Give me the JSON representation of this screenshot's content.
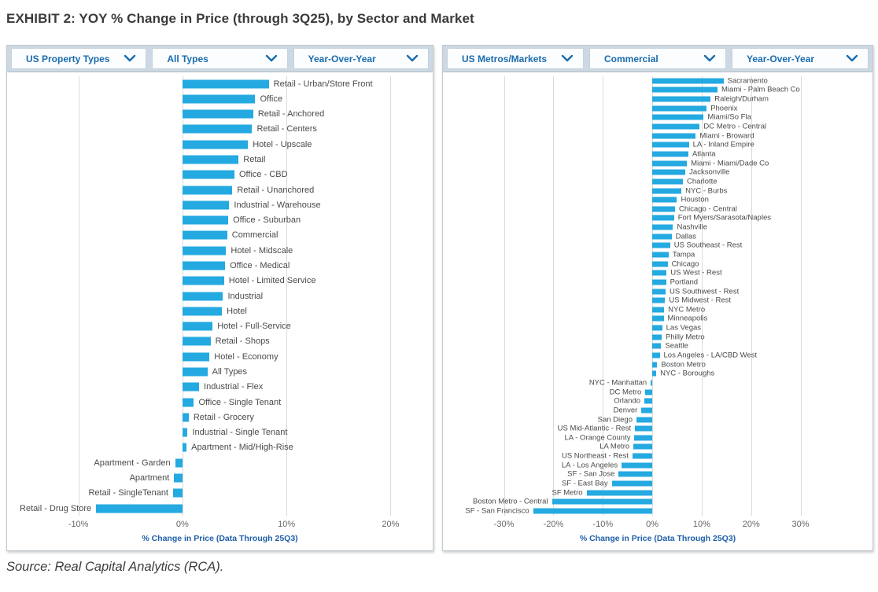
{
  "title": "EXHIBIT 2: YOY % Change in Price (through 3Q25), by Sector and Market",
  "source": "Source: Real Capital Analytics (RCA).",
  "colors": {
    "bar": "#24a9e1",
    "dropdown_text": "#1a6cae",
    "axis_title_text": "#1e5fa9",
    "tick_label_text": "#666666",
    "category_label_text": "#4a4a4a",
    "filter_row_bg": "#ccd8e3"
  },
  "panels": [
    {
      "filters": [
        {
          "label": "US Property Types"
        },
        {
          "label": "All Types"
        },
        {
          "label": "Year-Over-Year"
        }
      ]
    },
    {
      "filters": [
        {
          "label": "US Metros/Markets"
        },
        {
          "label": "Commercial"
        },
        {
          "label": "Year-Over-Year"
        }
      ]
    }
  ],
  "chart_data": [
    {
      "type": "bar",
      "orientation": "horizontal",
      "title": "US Property Types - All Types - Year-Over-Year",
      "xlabel": "% Change in Price (Data Through 25Q3)",
      "unit": "%",
      "grid": "vertical",
      "legend": "none",
      "ticks": [
        -10,
        0,
        10,
        20
      ],
      "tick_labels": [
        "-10%",
        "0%",
        "10%",
        "20%"
      ],
      "xlim": [
        -16.4,
        23.6
      ],
      "categories": [
        "Retail - Urban/Store Front",
        "Office",
        "Retail - Anchored",
        "Retail - Centers",
        "Hotel - Upscale",
        "Retail",
        "Office - CBD",
        "Retail - Unanchored",
        "Industrial - Warehouse",
        "Office - Suburban",
        "Commercial",
        "Hotel - Midscale",
        "Office - Medical",
        "Hotel - Limited Service",
        "Industrial",
        "Hotel",
        "Hotel - Full-Service",
        "Retail - Shops",
        "Hotel - Economy",
        "All Types",
        "Industrial - Flex",
        "Office - Single Tenant",
        "Retail - Grocery",
        "Industrial - Single Tenant",
        "Apartment - Mid/High-Rise",
        "Apartment - Garden",
        "Apartment",
        "Retail - SingleTenant",
        "Retail - Drug Store"
      ],
      "values": [
        8.3,
        7.0,
        6.8,
        6.7,
        6.3,
        5.4,
        5.0,
        4.8,
        4.5,
        4.4,
        4.3,
        4.2,
        4.1,
        4.0,
        3.9,
        3.8,
        2.9,
        2.7,
        2.6,
        2.4,
        1.6,
        1.1,
        0.6,
        0.5,
        0.4,
        -0.7,
        -0.8,
        -0.9,
        -8.3
      ]
    },
    {
      "type": "bar",
      "orientation": "horizontal",
      "title": "US Metros/Markets - Commercial - Year-Over-Year",
      "xlabel": "% Change in Price (Data Through 25Q3)",
      "unit": "%",
      "grid": "vertical",
      "legend": "none",
      "ticks": [
        -30,
        -20,
        -10,
        0,
        10,
        20,
        30
      ],
      "tick_labels": [
        "-30%",
        "-20%",
        "-10%",
        "0%",
        "10%",
        "20%",
        "30%"
      ],
      "xlim": [
        -41.4,
        43.6
      ],
      "categories": [
        "Sacramento",
        "Miami - Palm Beach Co",
        "Raleigh/Durham",
        "Phoenix",
        "Miami/So Fla",
        "DC Metro - Central",
        "Miami - Broward",
        "LA - Inland Empire",
        "Atlanta",
        "Miami - Miami/Dade Co",
        "Jacksonville",
        "Charlotte",
        "NYC - Burbs",
        "Houston",
        "Chicago - Central",
        "Fort Myers/Sarasota/Naples",
        "Nashville",
        "Dallas",
        "US Southeast - Rest",
        "Tampa",
        "Chicago",
        "US West - Rest",
        "Portland",
        "US Southwest - Rest",
        "US Midwest - Rest",
        "NYC Metro",
        "Minneapolis",
        "Las Vegas",
        "Philly Metro",
        "Seattle",
        "Los Angeles - LA/CBD West",
        "Boston Metro",
        "NYC - Boroughs",
        "NYC - Manhattan",
        "DC Metro",
        "Orlando",
        "Denver",
        "San Diego",
        "US Mid-Atlantic - Rest",
        "LA - Orange County",
        "LA Metro",
        "US Northeast - Rest",
        "LA - Los Angeles",
        "SF - San Jose",
        "SF - East Bay",
        "SF Metro",
        "Boston Metro - Central",
        "SF - San Francisco"
      ],
      "values": [
        14.4,
        13.2,
        11.8,
        11.0,
        10.4,
        9.6,
        8.8,
        7.4,
        7.3,
        7.0,
        6.7,
        6.2,
        5.9,
        5.0,
        4.6,
        4.4,
        4.2,
        3.9,
        3.6,
        3.3,
        3.1,
        2.9,
        2.8,
        2.7,
        2.6,
        2.4,
        2.3,
        2.0,
        1.9,
        1.8,
        1.5,
        1.0,
        0.8,
        -0.3,
        -1.4,
        -1.6,
        -2.2,
        -3.2,
        -3.5,
        -3.6,
        -3.8,
        -4.0,
        -6.2,
        -6.8,
        -8.2,
        -13.3,
        -20.3,
        -24.1
      ]
    }
  ]
}
